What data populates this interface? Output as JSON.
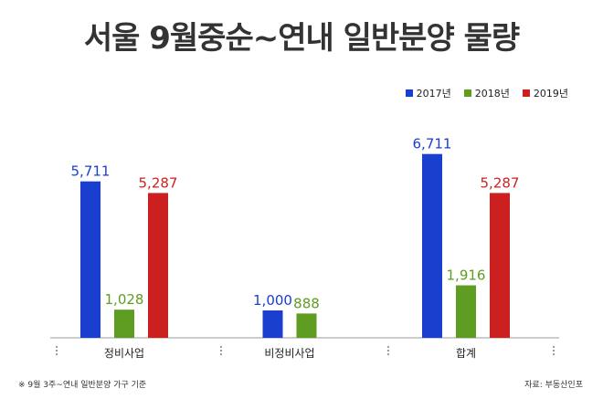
{
  "colors": {
    "2017년": "#1a3fcf",
    "2018년": "#5e9c22",
    "2019년": "#cc1f1f"
  },
  "footnote": "※ 9월 3주~연내 일반분양 가구 기준",
  "source": "자료: 부동산인포",
  "chart_data": {
    "type": "bar",
    "title": "서울 9월중순~연내 일반분양 물량",
    "categories": [
      "정비사업",
      "비정비사업",
      "합계"
    ],
    "series": [
      {
        "name": "2017년",
        "values": [
          5711,
          1000,
          6711
        ],
        "labels": [
          "5,711",
          "1,000",
          "6,711"
        ]
      },
      {
        "name": "2018년",
        "values": [
          1028,
          888,
          1916
        ],
        "labels": [
          "1,028",
          "888",
          "1,916"
        ]
      },
      {
        "name": "2019년",
        "values": [
          5287,
          null,
          5287
        ],
        "labels": [
          "5,287",
          "",
          "5,287"
        ]
      }
    ],
    "legend_position": "top-right",
    "ylim": [
      0,
      7500
    ],
    "grid": false
  }
}
